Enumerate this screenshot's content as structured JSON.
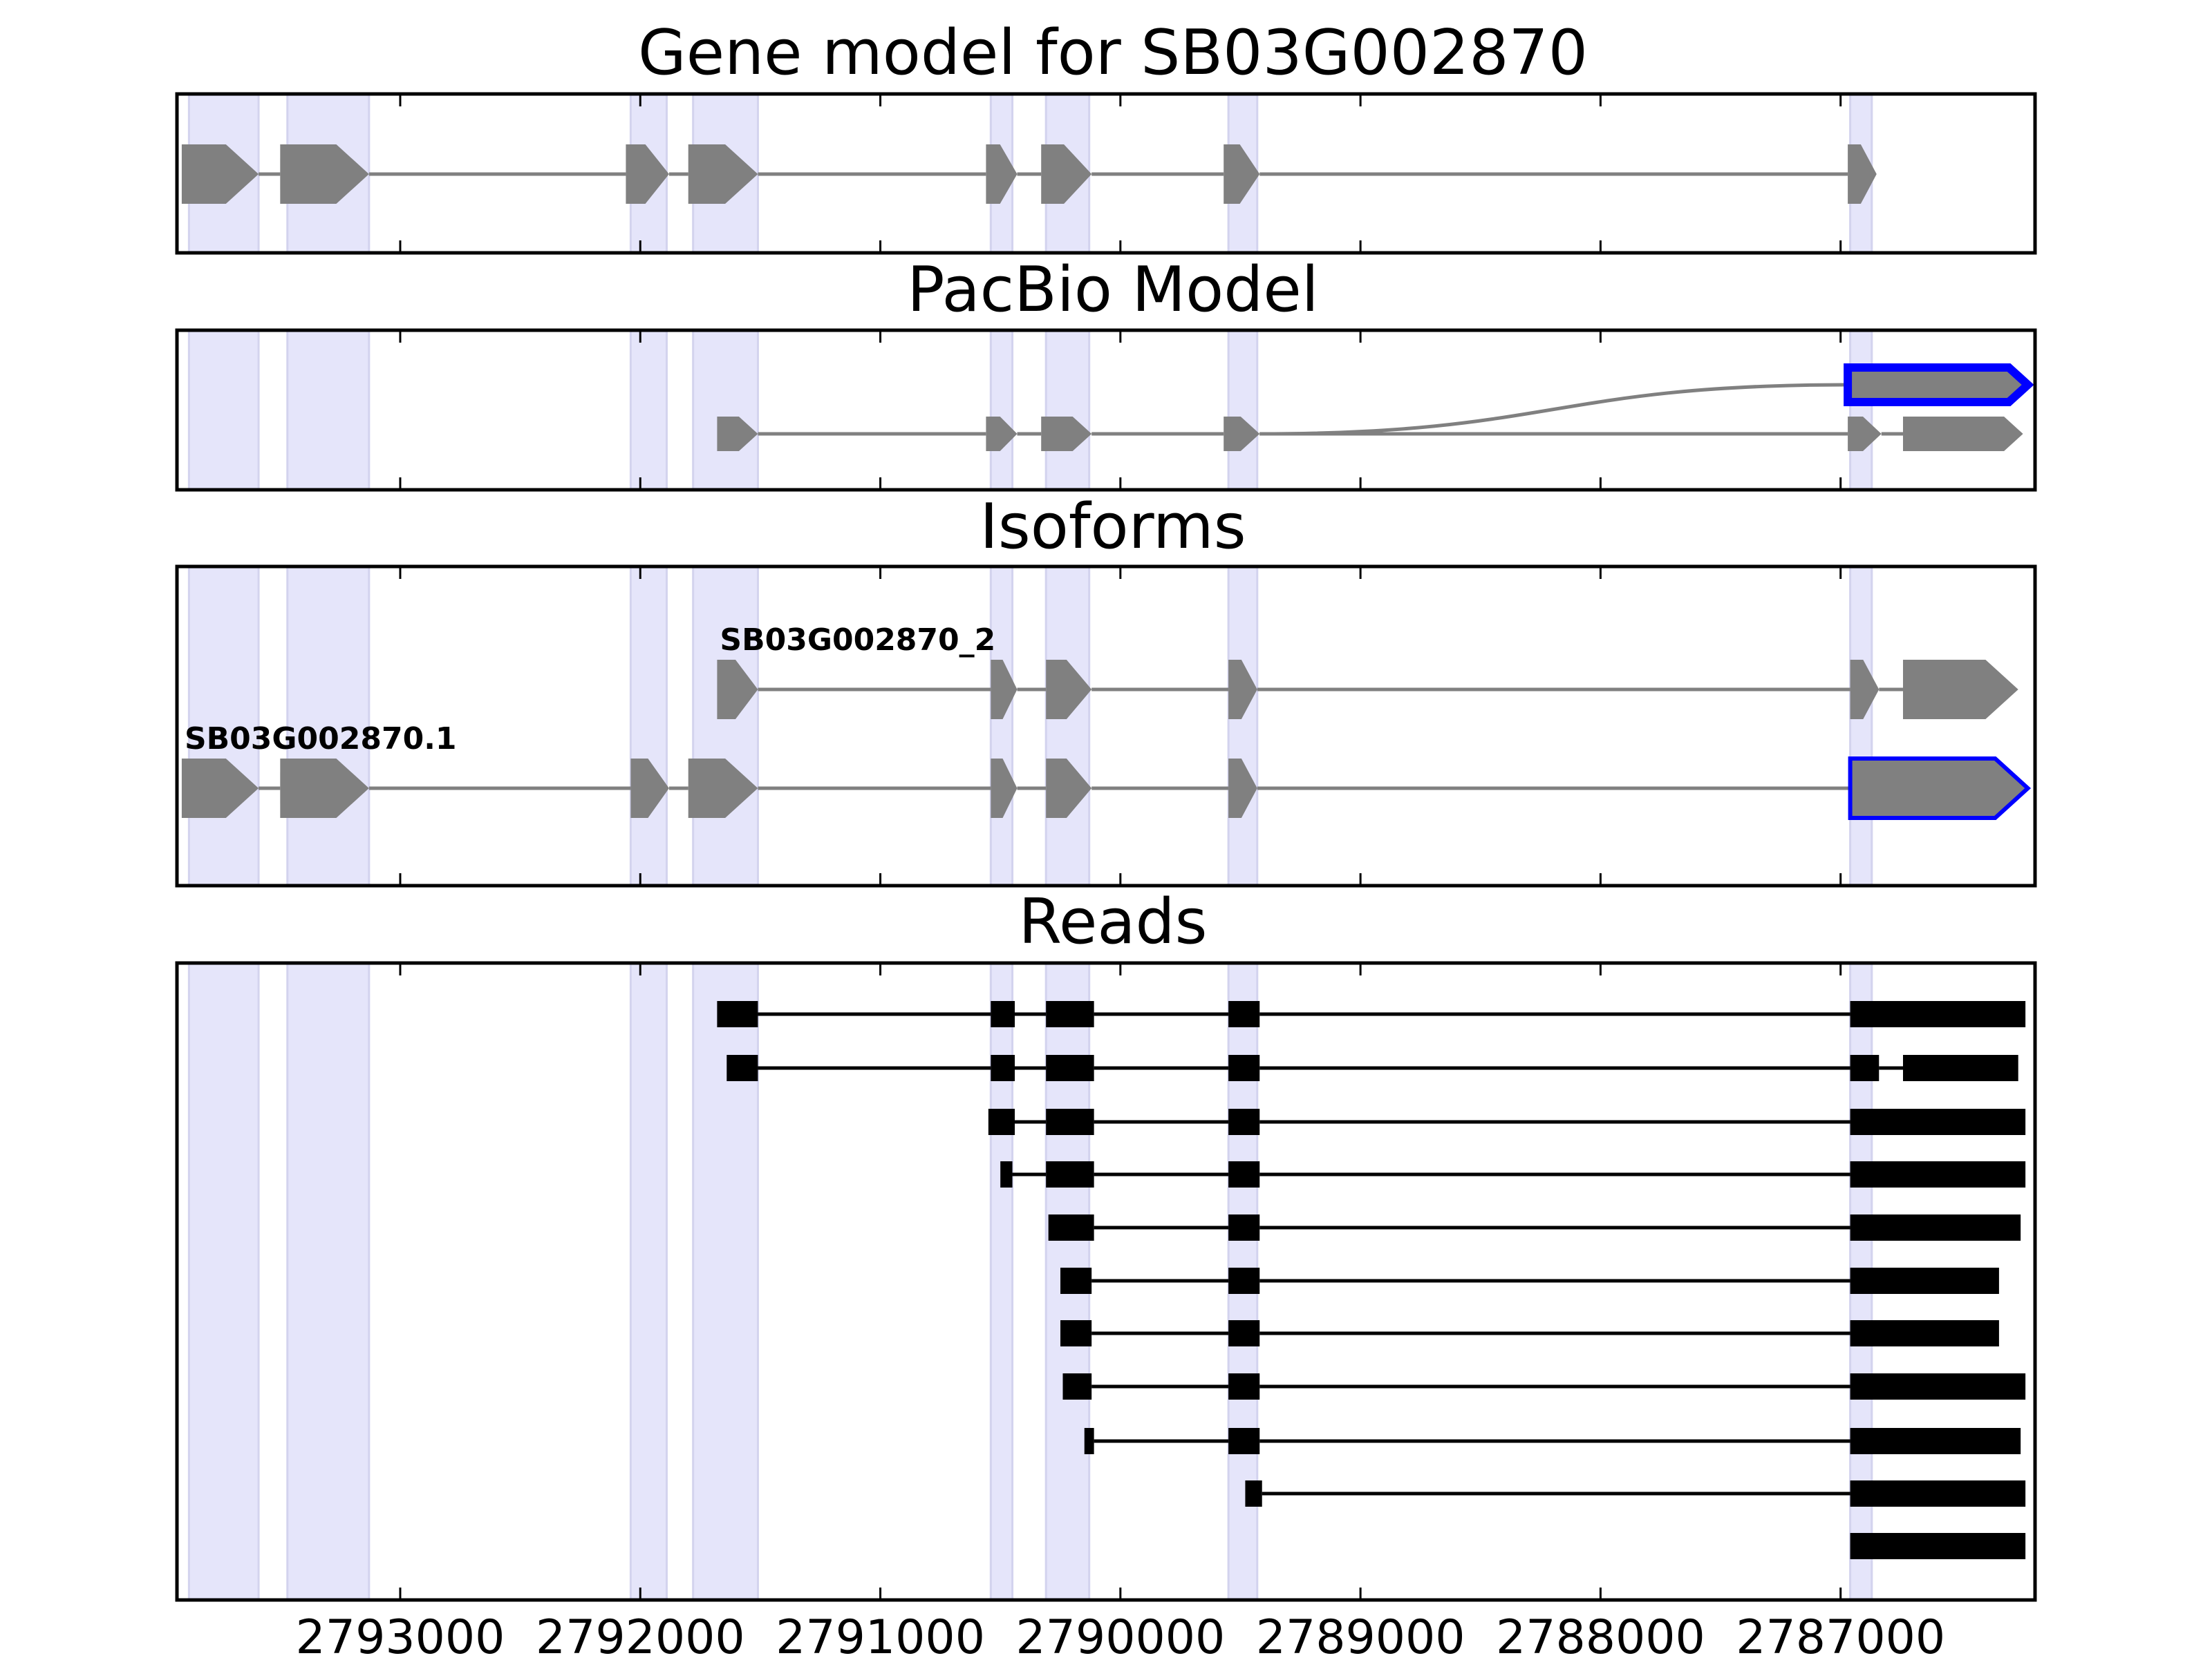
{
  "chart_data": {
    "type": "gene-model",
    "x_axis": {
      "reversed": true,
      "domain": [
        2793930,
        2786190
      ],
      "ticks": [
        2793000,
        2792000,
        2791000,
        2790000,
        2789000,
        2788000,
        2787000
      ],
      "tick_labels": [
        "2793000",
        "2792000",
        "2791000",
        "2790000",
        "2789000",
        "2788000",
        "2787000"
      ]
    },
    "colors": {
      "exon_fill": "#808080",
      "intron_line": "#808080",
      "highlight_band": "#e5e5fa",
      "selected_outline": "#0000ff",
      "read_color": "#000000",
      "frame": "#000000"
    },
    "exon_bands": [
      [
        2793880,
        2793590
      ],
      [
        2793470,
        2793130
      ],
      [
        2792040,
        2791890
      ],
      [
        2791780,
        2791510
      ],
      [
        2790540,
        2790450
      ],
      [
        2790310,
        2790130
      ],
      [
        2789550,
        2789430
      ],
      [
        2786960,
        2786870
      ]
    ],
    "panels": [
      {
        "title": "Gene model for SB03G002870",
        "tracks": [
          {
            "exons": [
              [
                2793910,
                2793590
              ],
              [
                2793500,
                2793130
              ],
              [
                2792060,
                2791880
              ],
              [
                2791800,
                2791510
              ],
              [
                2790560,
                2790430
              ],
              [
                2790330,
                2790120
              ],
              [
                2789570,
                2789420
              ],
              [
                2786970,
                2786850
              ]
            ]
          }
        ]
      },
      {
        "title": "PacBio Model",
        "tracks": [
          {
            "exons": [
              [
                2791680,
                2791510
              ],
              [
                2790560,
                2790430
              ],
              [
                2790330,
                2790120
              ],
              [
                2789570,
                2789420
              ],
              [
                2786970,
                2786830
              ],
              [
                2786740,
                2786240
              ]
            ]
          },
          {
            "exons": [
              [
                2786970,
                2786220
              ]
            ],
            "selected": true,
            "from_track": 0,
            "from_coord": 2789420
          }
        ]
      },
      {
        "title": "Isoforms",
        "tracks": [
          {
            "label": "SB03G002870_2",
            "exons": [
              [
                2791680,
                2791510
              ],
              [
                2790540,
                2790430
              ],
              [
                2790310,
                2790120
              ],
              [
                2789550,
                2789430
              ],
              [
                2786960,
                2786840
              ],
              [
                2786740,
                2786260
              ]
            ]
          },
          {
            "label": "SB03G002870.1",
            "selected": true,
            "exons": [
              [
                2793910,
                2793590
              ],
              [
                2793500,
                2793130
              ],
              [
                2792040,
                2791880
              ],
              [
                2791800,
                2791510
              ],
              [
                2790540,
                2790430
              ],
              [
                2790310,
                2790120
              ],
              [
                2789550,
                2789430
              ],
              [
                2786960,
                2786220
              ]
            ]
          }
        ]
      },
      {
        "title": "Reads",
        "reads": [
          [
            [
              2791680,
              2791510
            ],
            [
              2790540,
              2790440
            ],
            [
              2790310,
              2790110
            ],
            [
              2789550,
              2789420
            ],
            [
              2786960,
              2786230
            ]
          ],
          [
            [
              2791640,
              2791510
            ],
            [
              2790540,
              2790440
            ],
            [
              2790310,
              2790110
            ],
            [
              2789550,
              2789420
            ],
            [
              2786960,
              2786840
            ],
            [
              2786740,
              2786260
            ]
          ],
          [
            [
              2790550,
              2790440
            ],
            [
              2790310,
              2790110
            ],
            [
              2789550,
              2789420
            ],
            [
              2786960,
              2786230
            ]
          ],
          [
            [
              2790500,
              2790450
            ],
            [
              2790310,
              2790110
            ],
            [
              2789550,
              2789420
            ],
            [
              2786960,
              2786230
            ]
          ],
          [
            [
              2790300,
              2790110
            ],
            [
              2789550,
              2789420
            ],
            [
              2786960,
              2786250
            ]
          ],
          [
            [
              2790250,
              2790120
            ],
            [
              2789550,
              2789420
            ],
            [
              2786960,
              2786340
            ]
          ],
          [
            [
              2790250,
              2790120
            ],
            [
              2789550,
              2789420
            ],
            [
              2786960,
              2786340
            ]
          ],
          [
            [
              2790240,
              2790120
            ],
            [
              2789550,
              2789420
            ],
            [
              2786960,
              2786230
            ]
          ],
          [
            [
              2790150,
              2790110
            ],
            [
              2789550,
              2789420
            ],
            [
              2786960,
              2786250
            ]
          ],
          [
            [
              2789480,
              2789410
            ],
            [
              2786960,
              2786230
            ]
          ],
          [
            [
              2786960,
              2786230
            ]
          ]
        ]
      }
    ]
  }
}
